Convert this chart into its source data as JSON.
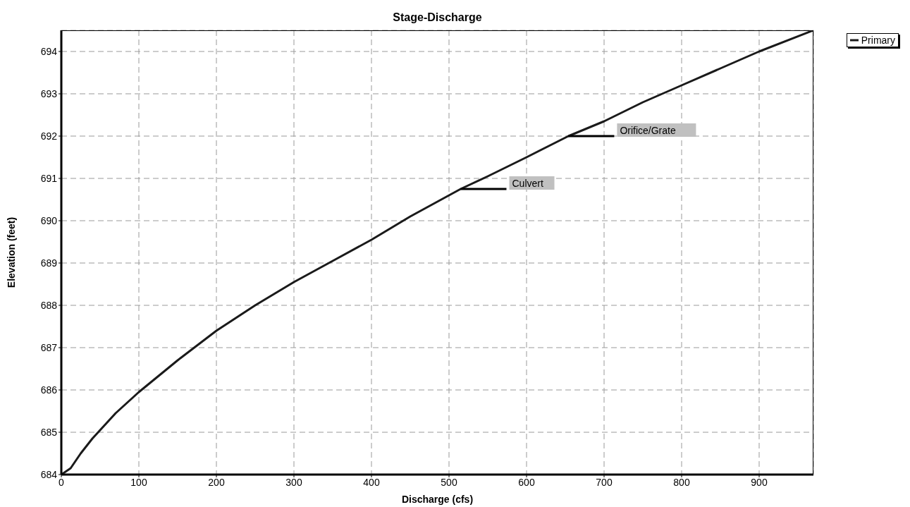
{
  "chart_data": {
    "type": "line",
    "title": "Stage-Discharge",
    "xlabel": "Discharge  (cfs)",
    "ylabel": "Elevation  (feet)",
    "x": [
      0,
      12,
      25,
      40,
      50,
      70,
      100,
      150,
      200,
      250,
      300,
      350,
      400,
      450,
      500,
      515,
      550,
      600,
      654,
      700,
      750,
      800,
      850,
      900,
      970
    ],
    "series": [
      {
        "name": "Primary",
        "color": "#1a1a1a",
        "values": [
          684,
          684.15,
          684.5,
          684.85,
          685.05,
          685.45,
          685.95,
          686.7,
          687.4,
          688.0,
          688.55,
          689.05,
          689.55,
          690.1,
          690.6,
          690.75,
          691.05,
          691.5,
          692,
          692.35,
          692.8,
          693.2,
          693.6,
          694,
          694.5
        ]
      }
    ],
    "xlim": [
      0,
      970
    ],
    "xticks": [
      0,
      100,
      200,
      300,
      400,
      500,
      600,
      700,
      800,
      900
    ],
    "ylim": [
      684,
      694.5
    ],
    "yticks": [
      684,
      685,
      686,
      687,
      688,
      689,
      690,
      691,
      692,
      693,
      694
    ],
    "annotations": [
      {
        "text": "Culvert",
        "x": 515,
        "y": 690.75
      },
      {
        "text": "Orifice/Grate",
        "x": 654,
        "y": 692
      }
    ],
    "grid": true,
    "legend": "top right",
    "marker": "none",
    "line_style": "solid"
  }
}
